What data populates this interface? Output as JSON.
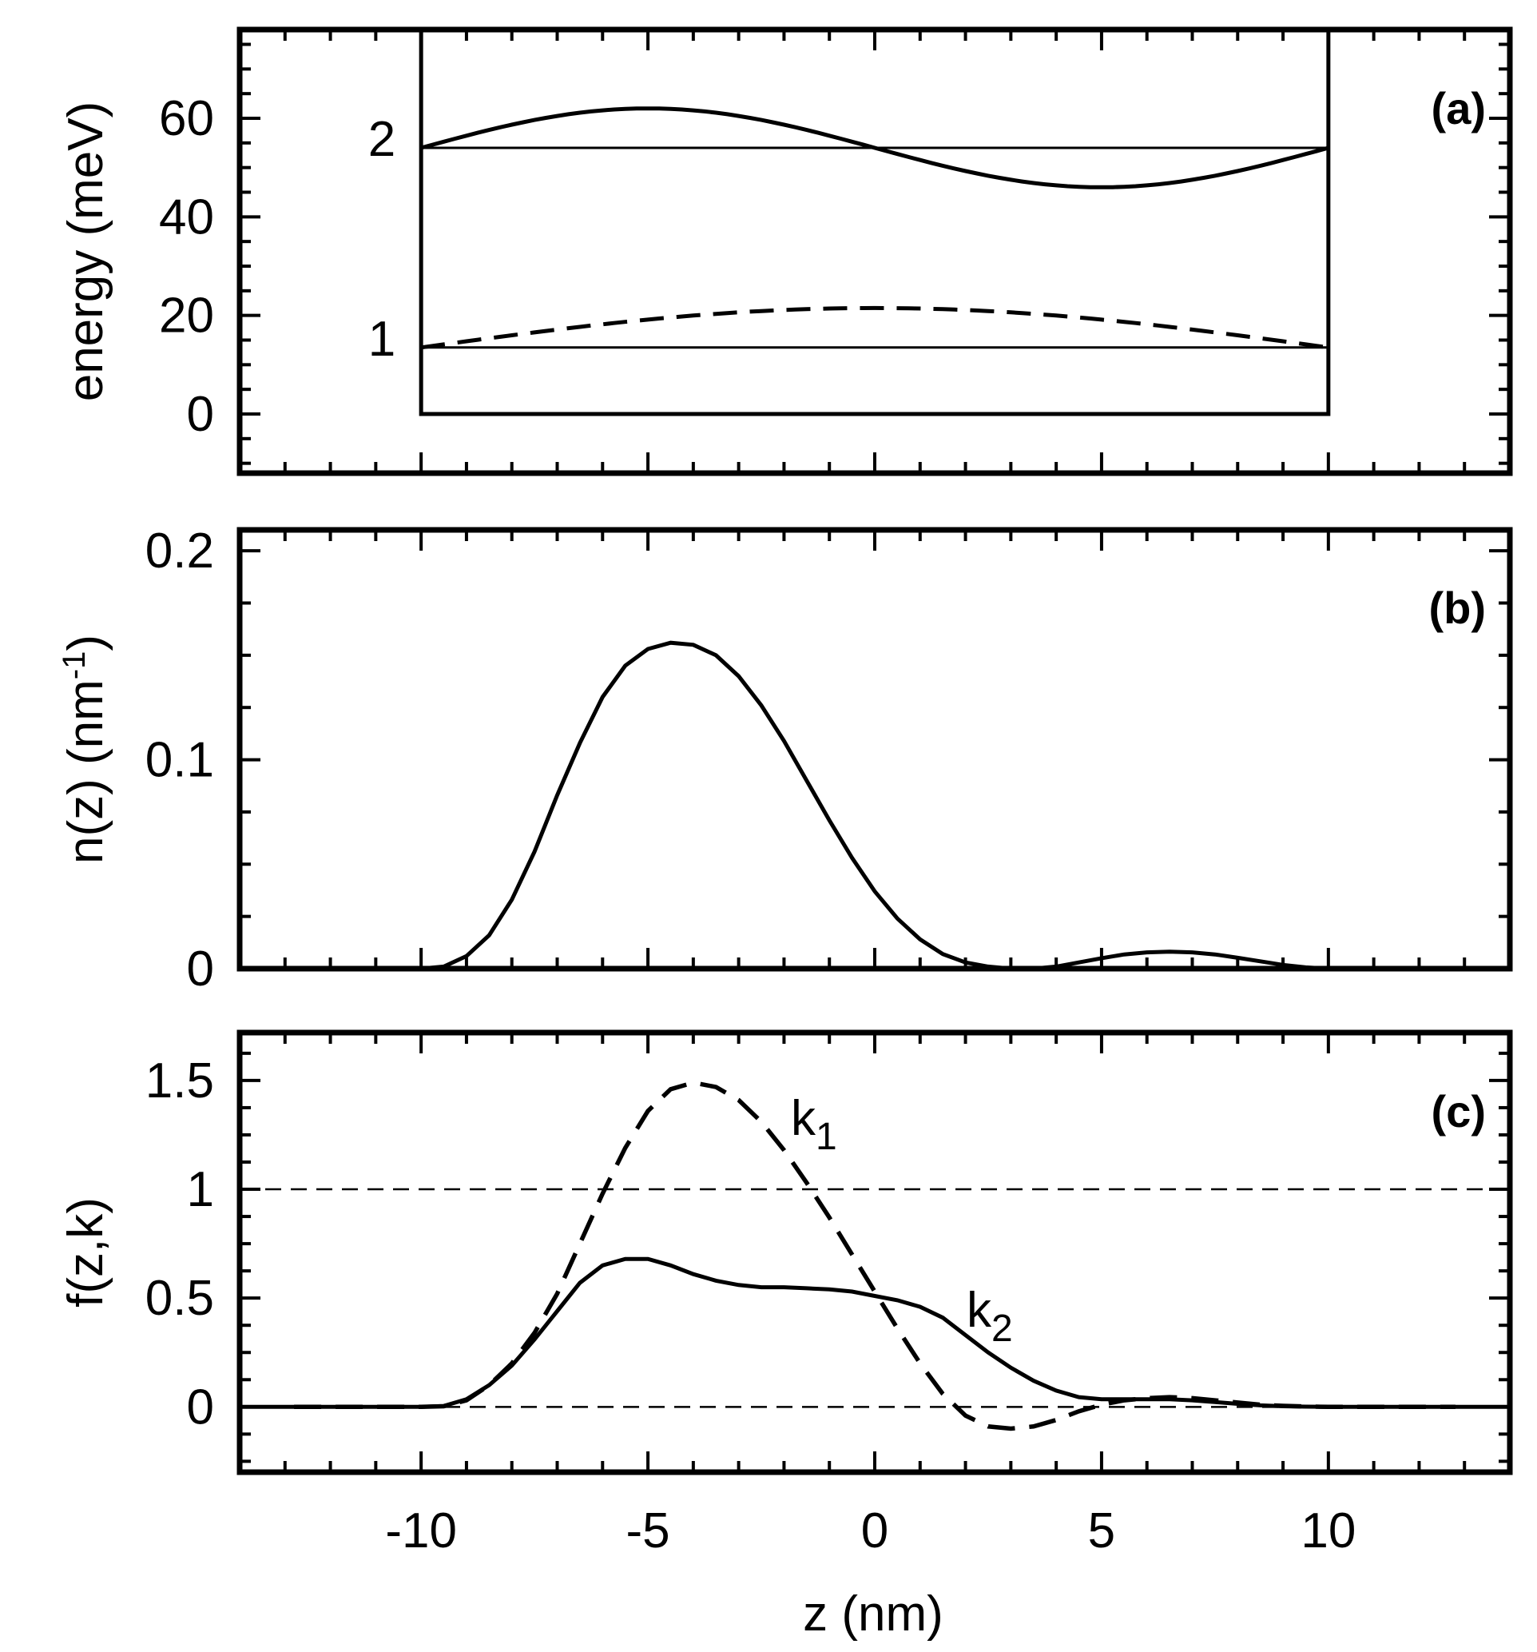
{
  "chart_data": [
    {
      "type": "line",
      "panel": "(a)",
      "ylabel": "energy (meV)",
      "xlim": [
        -14,
        14
      ],
      "ylim": [
        -12,
        78
      ],
      "yticks": [
        "0",
        "20",
        "40",
        "60"
      ],
      "grid": false,
      "well": {
        "z_left": -10,
        "z_right": 10,
        "bottom": 0,
        "top": 78
      },
      "levels": [
        {
          "label": "1",
          "energy": 13.5
        },
        {
          "label": "2",
          "energy": 54
        }
      ],
      "series": [
        {
          "name": "state 2 wavefunction",
          "style": "solid",
          "formula": "54 + 8*sin(pi*(z+10)/10)",
          "x_range": [
            -10,
            10
          ]
        },
        {
          "name": "state 1 wavefunction",
          "style": "dashed",
          "formula": "13.5 + 8*cos(pi*z/20)",
          "x_range": [
            -10,
            10
          ]
        }
      ]
    },
    {
      "type": "line",
      "panel": "(b)",
      "ylabel": "n(z) (nm",
      "ylabel_sup": "-1",
      "ylabel_end": ")",
      "xlim": [
        -14,
        14
      ],
      "ylim": [
        0,
        0.21
      ],
      "yticks": [
        "0",
        "0.1",
        "0.2"
      ],
      "grid": false,
      "series": [
        {
          "name": "n(z)",
          "style": "solid",
          "x": [
            -10,
            -9.5,
            -9,
            -8.5,
            -8,
            -7.5,
            -7,
            -6.5,
            -6,
            -5.5,
            -5,
            -4.5,
            -4,
            -3.5,
            -3,
            -2.5,
            -2,
            -1.5,
            -1,
            -0.5,
            0,
            0.5,
            1,
            1.5,
            2,
            2.5,
            3,
            3.5,
            4,
            4.5,
            5,
            5.5,
            6,
            6.5,
            7,
            7.5,
            8,
            8.5,
            9,
            9.5,
            10
          ],
          "y": [
            0,
            0.001,
            0.006,
            0.016,
            0.033,
            0.056,
            0.083,
            0.108,
            0.13,
            0.145,
            0.153,
            0.156,
            0.155,
            0.15,
            0.14,
            0.126,
            0.109,
            0.09,
            0.071,
            0.053,
            0.037,
            0.024,
            0.014,
            0.007,
            0.003,
            0.001,
            0.0,
            0.0,
            0.001,
            0.003,
            0.005,
            0.0068,
            0.0078,
            0.0081,
            0.0078,
            0.0068,
            0.0052,
            0.0035,
            0.0018,
            0.0006,
            0
          ]
        }
      ]
    },
    {
      "type": "line",
      "panel": "(c)",
      "xlabel": "z (nm)",
      "ylabel": "f(z,k)",
      "xlim": [
        -14,
        14
      ],
      "ylim": [
        -0.3,
        1.72
      ],
      "yticks": [
        "0",
        "0.5",
        "1",
        "1.5"
      ],
      "xticks": [
        "-10",
        "-5",
        "0",
        "5",
        "10"
      ],
      "grid": false,
      "reference_lines": [
        0,
        1
      ],
      "series": [
        {
          "name": "k",
          "subscript": "1",
          "style": "dashed",
          "x": [
            -12.8,
            -12,
            -11,
            -10,
            -9.5,
            -9,
            -8.5,
            -8,
            -7.5,
            -7,
            -6.5,
            -6,
            -5.5,
            -5,
            -4.5,
            -4,
            -3.5,
            -3,
            -2.5,
            -2,
            -1.5,
            -1,
            -0.5,
            0,
            0.5,
            1,
            1.5,
            2,
            2.5,
            3,
            3.5,
            4,
            4.5,
            5,
            5.5,
            6,
            6.5,
            7,
            7.5,
            8,
            8.5,
            9,
            9.5,
            10,
            11,
            12,
            12.8
          ],
          "y": [
            0,
            0,
            0,
            0,
            0.003,
            0.03,
            0.1,
            0.2,
            0.34,
            0.52,
            0.75,
            0.98,
            1.19,
            1.36,
            1.46,
            1.49,
            1.47,
            1.41,
            1.31,
            1.18,
            1.03,
            0.87,
            0.7,
            0.53,
            0.36,
            0.2,
            0.06,
            -0.04,
            -0.09,
            -0.1,
            -0.09,
            -0.06,
            -0.02,
            0.01,
            0.03,
            0.04,
            0.045,
            0.04,
            0.03,
            0.02,
            0.01,
            0.005,
            0.002,
            0,
            0,
            0,
            0
          ]
        },
        {
          "name": "k",
          "subscript": "2",
          "style": "solid",
          "x": [
            -14,
            -12,
            -11,
            -10,
            -9.5,
            -9,
            -8.5,
            -8,
            -7.5,
            -7,
            -6.5,
            -6,
            -5.5,
            -5,
            -4.5,
            -4,
            -3.5,
            -3,
            -2.5,
            -2,
            -1.5,
            -1,
            -0.5,
            0,
            0.5,
            1,
            1.5,
            2,
            2.5,
            3,
            3.5,
            4,
            4.5,
            5,
            5.5,
            6,
            6.5,
            7,
            7.5,
            8,
            8.5,
            9,
            9.5,
            10,
            11,
            12,
            14
          ],
          "y": [
            0,
            0,
            0,
            0,
            0.004,
            0.035,
            0.1,
            0.19,
            0.31,
            0.44,
            0.57,
            0.65,
            0.68,
            0.68,
            0.65,
            0.61,
            0.58,
            0.56,
            0.55,
            0.55,
            0.545,
            0.54,
            0.53,
            0.51,
            0.49,
            0.46,
            0.41,
            0.33,
            0.25,
            0.18,
            0.12,
            0.075,
            0.045,
            0.035,
            0.035,
            0.035,
            0.035,
            0.03,
            0.022,
            0.014,
            0.007,
            0.003,
            0.001,
            0,
            0,
            0,
            0
          ]
        }
      ]
    }
  ]
}
